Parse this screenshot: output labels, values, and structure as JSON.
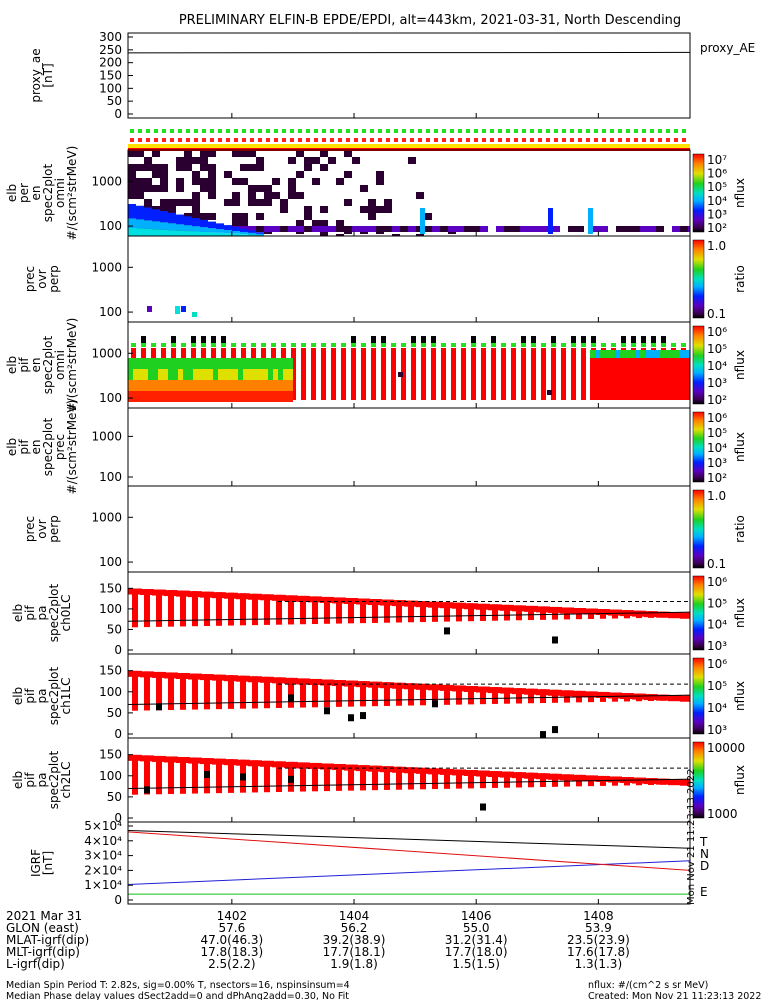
{
  "title": "PRELIMINARY ELFIN-B EPDE/EPDI, alt=443km, 2021-03-31, North Descending",
  "panels": [
    {
      "id": "proxy_ae",
      "ylabel": [
        "proxy_ae",
        "[nT]"
      ],
      "yticks": [
        "300",
        "250",
        "200",
        "150",
        "100",
        "50",
        "0"
      ],
      "right_label": "proxy_AE"
    },
    {
      "id": "epde_omni",
      "ylabel": [
        "elb",
        "per",
        "en",
        "spec2plot",
        "omni",
        "#/(scm²strMeV)"
      ],
      "yticks": [
        "1000",
        "100"
      ],
      "colorbar_ticks": [
        "10⁷",
        "10⁶",
        "10⁵",
        "10⁴",
        "10³",
        "10²"
      ],
      "colorbar_unit": "nflux"
    },
    {
      "id": "epde_ratio",
      "ylabel": [
        "prec",
        "ovr",
        "perp"
      ],
      "yticks": [
        "1000",
        "100"
      ],
      "colorbar_ticks": [
        "1.0",
        "0.1"
      ],
      "colorbar_unit": "ratio"
    },
    {
      "id": "epdi_omni",
      "ylabel": [
        "elb",
        "pif",
        "en",
        "spec2plot",
        "omni",
        "#/(scm²strMeV)"
      ],
      "yticks": [
        "1000",
        "100"
      ],
      "colorbar_ticks": [
        "10⁶",
        "10⁵",
        "10⁴",
        "10³",
        "10²"
      ],
      "colorbar_unit": "nflux"
    },
    {
      "id": "epdi_prec",
      "ylabel": [
        "elb",
        "pif",
        "en",
        "spec2plot",
        "prec",
        "#/(scm²strMeV)"
      ],
      "yticks": [
        "1000",
        "100"
      ],
      "colorbar_ticks": [
        "10⁶",
        "10⁵",
        "10⁴",
        "10³",
        "10²"
      ],
      "colorbar_unit": "nflux"
    },
    {
      "id": "epdi_ratio",
      "ylabel": [
        "prec",
        "ovr",
        "perp"
      ],
      "yticks": [
        "1000",
        "100"
      ],
      "colorbar_ticks": [
        "1.0",
        "0.1"
      ],
      "colorbar_unit": "ratio"
    },
    {
      "id": "pa_ch0",
      "ylabel": [
        "elb",
        "pif",
        "pa",
        "spec2plot",
        "ch0LC"
      ],
      "yticks": [
        "150",
        "100",
        "50",
        "0"
      ],
      "colorbar_ticks": [
        "10⁶",
        "10⁵",
        "10⁴",
        "10³"
      ],
      "colorbar_unit": "nflux"
    },
    {
      "id": "pa_ch1",
      "ylabel": [
        "elb",
        "pif",
        "pa",
        "spec2plot",
        "ch1LC"
      ],
      "yticks": [
        "150",
        "100",
        "50",
        "0"
      ],
      "colorbar_ticks": [
        "10⁶",
        "10⁵",
        "10⁴",
        "10³"
      ],
      "colorbar_unit": "nflux"
    },
    {
      "id": "pa_ch2",
      "ylabel": [
        "elb",
        "pif",
        "pa",
        "spec2plot",
        "ch2LC"
      ],
      "yticks": [
        "150",
        "100",
        "50",
        "0"
      ],
      "colorbar_ticks": [
        "10000",
        "1000"
      ],
      "colorbar_unit": "nflux"
    },
    {
      "id": "igrf",
      "ylabel": [
        "IGRF",
        "[nT]"
      ],
      "yticks": [
        "5×10⁴",
        "4×10⁴",
        "3×10⁴",
        "2×10⁴",
        "1×10⁴",
        "0"
      ],
      "legend": [
        {
          "label": "T",
          "color": "#000000"
        },
        {
          "label": "N",
          "color": "#1f1fd6"
        },
        {
          "label": "D",
          "color": "#e01010"
        },
        {
          "label": "E",
          "color": "#10c010"
        }
      ]
    }
  ],
  "chart_data": [
    {
      "type": "line",
      "title": "proxy_AE",
      "ylabel": "proxy_ae [nT]",
      "ylim": [
        0,
        300
      ],
      "x": [
        "1400.3",
        "1409.5"
      ],
      "series": [
        {
          "name": "proxy_AE",
          "values": [
            238,
            240
          ]
        }
      ]
    },
    {
      "type": "line",
      "title": "IGRF",
      "ylabel": "IGRF [nT]",
      "ylim": [
        0,
        50000
      ],
      "x": [
        "1400.3",
        "1409.5"
      ],
      "series": [
        {
          "name": "T",
          "values": [
            47000,
            35000
          ]
        },
        {
          "name": "N",
          "values": [
            10500,
            26500
          ]
        },
        {
          "name": "D",
          "values": [
            46000,
            20000
          ]
        },
        {
          "name": "E",
          "values": [
            4000,
            4000
          ]
        }
      ]
    },
    {
      "type": "heatmap",
      "title": "elb per en spec2plot omni",
      "ylabel": "#/(scm²strMeV)",
      "ylim": [
        60,
        5000
      ],
      "colorbar": {
        "unit": "nflux",
        "ticks": [
          "10²",
          "10³",
          "10⁴",
          "10⁵",
          "10⁶",
          "10⁷"
        ]
      }
    },
    {
      "type": "heatmap",
      "title": "elb pif pa spec2plot ch0LC",
      "ylabel": "pa",
      "ylim": [
        0,
        180
      ],
      "colorbar": {
        "unit": "nflux",
        "ticks": [
          "10³",
          "10⁴",
          "10⁵",
          "10⁶"
        ]
      }
    }
  ],
  "time_axis": {
    "ticks": [
      "1402",
      "1404",
      "1406",
      "1408"
    ],
    "rows": [
      {
        "label": "2021 Mar 31",
        "values": [
          "1402",
          "1404",
          "1406",
          "1408"
        ]
      },
      {
        "label": "GLON (east)",
        "values": [
          "57.6",
          "56.2",
          "55.0",
          "53.9"
        ]
      },
      {
        "label": "MLAT-igrf(dip)",
        "values": [
          "47.0(46.3)",
          "39.2(38.9)",
          "31.2(31.4)",
          "23.5(23.9)"
        ]
      },
      {
        "label": "MLT-igrf(dip)",
        "values": [
          "17.8(18.3)",
          "17.7(18.1)",
          "17.7(18.0)",
          "17.6(17.8)"
        ]
      },
      {
        "label": "L-igrf(dip)",
        "values": [
          "2.5(2.2)",
          "1.9(1.8)",
          "1.5(1.5)",
          "1.3(1.3)"
        ]
      }
    ]
  },
  "footer": {
    "line1_left": "Median Spin Period T: 2.82s, sig=0.00% T, nsectors=16, nspinsinsum=4",
    "line2_left": "Median Phase delay values dSect2add=0 and dPhAng2add=0.30, No Fit",
    "line1_right": "nflux: #/(cm^2 s sr MeV)",
    "line2_right": "Created: Mon Nov 21 11:23:13 2022",
    "side_stamp": "Mon Nov 21 11:23:13 2022"
  },
  "colors": {
    "bar_red": "#ff0000",
    "bar_black": "#000000",
    "sep_lo": "#2a0030"
  }
}
